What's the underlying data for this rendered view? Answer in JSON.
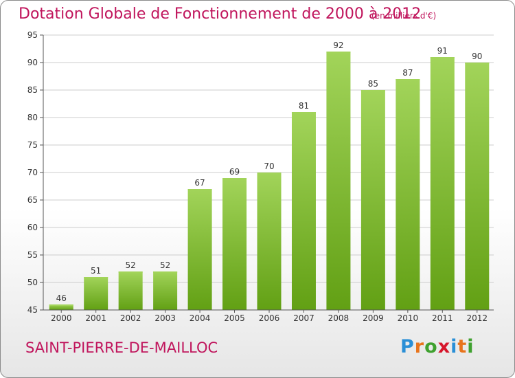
{
  "header": {
    "title": "Dotation Globale de Fonctionnement de 2000 à 2012",
    "unit": "(en milliers d'€)"
  },
  "footer": {
    "commune": "SAINT-PIERRE-DE-MAILLOC",
    "logo_text": "Proxiti",
    "logo_letters": [
      "P",
      "r",
      "o",
      "x",
      "i",
      "t",
      "i"
    ],
    "logo_colors": [
      "#2a8fd6",
      "#e8741c",
      "#3fa12f",
      "#d6162b",
      "#2a8fd6",
      "#e8741c",
      "#3fa12f"
    ]
  },
  "colors": {
    "bar_top": "#a2d45a",
    "bar_bottom": "#62a014",
    "accent": "#c0155c",
    "grid": "#cccccc",
    "axis": "#555555"
  },
  "chart_data": {
    "type": "bar",
    "categories": [
      "2000",
      "2001",
      "2002",
      "2003",
      "2004",
      "2005",
      "2006",
      "2007",
      "2008",
      "2009",
      "2010",
      "2011",
      "2012"
    ],
    "values": [
      46,
      51,
      52,
      52,
      67,
      69,
      70,
      81,
      92,
      85,
      87,
      91,
      90
    ],
    "data_labels": [
      "46",
      "51",
      "52",
      "52",
      "67",
      "69",
      "70",
      "81",
      "92",
      "85",
      "87",
      "91",
      "90"
    ],
    "yticks": [
      "45",
      "50",
      "55",
      "60",
      "65",
      "70",
      "75",
      "80",
      "85",
      "90",
      "95"
    ],
    "ylim": [
      45,
      95
    ],
    "grid": true,
    "title": "Dotation Globale de Fonctionnement de 2000 à 2012",
    "xlabel": "",
    "ylabel": ""
  }
}
